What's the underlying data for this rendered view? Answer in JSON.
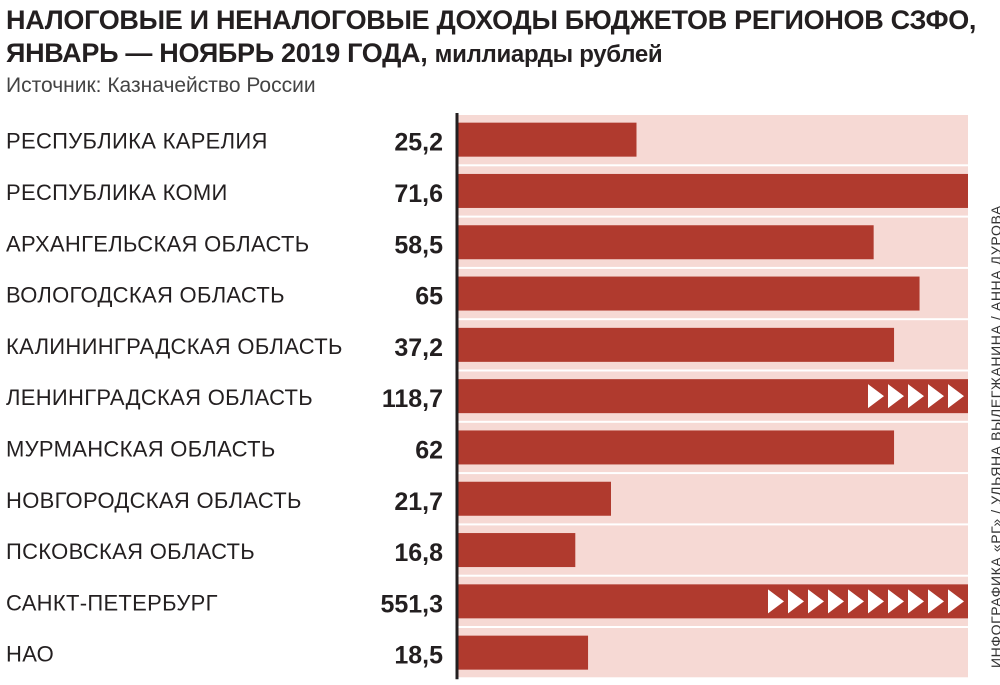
{
  "chart_data": {
    "type": "bar",
    "orientation": "horizontal",
    "title": "НАЛОГОВЫЕ И НЕНАЛОГОВЫЕ ДОХОДЫ БЮДЖЕТОВ РЕГИОНОВ СЗФО, ЯНВАРЬ — НОЯБРЬ 2019 ГОДА,",
    "unit_label": "миллиарды рублей",
    "source": "Источник: Казначейство России",
    "credit": "ИНФОГРАФИКА «РГ» / УЛЬЯНА ВЫЛЕГЖАНИНА / АННА ДУРОВА",
    "categories": [
      "РЕСПУБЛИКА КАРЕЛИЯ",
      "РЕСПУБЛИКА КОМИ",
      "АРХАНГЕЛЬСКАЯ ОБЛАСТЬ",
      "ВОЛОГОДСКАЯ ОБЛАСТЬ",
      "КАЛИНИНГРАДСКАЯ ОБЛАСТЬ",
      "ЛЕНИНГРАДСКАЯ ОБЛАСТЬ",
      "МУРМАНСКАЯ ОБЛАСТЬ",
      "НОВГОРОДСКАЯ ОБЛАСТЬ",
      "ПСКОВСКАЯ ОБЛАСТЬ",
      "САНКТ-ПЕТЕРБУРГ",
      "НАО"
    ],
    "value_labels": [
      "25,2",
      "71,6",
      "58,5",
      "65",
      "37,2",
      "118,7",
      "62",
      "21,7",
      "16,8",
      "551,3",
      "18,5"
    ],
    "values": [
      25.2,
      71.6,
      58.5,
      65,
      37.2,
      118.7,
      62,
      21.7,
      16.8,
      551.3,
      18.5
    ],
    "bar_fill_fraction": [
      0.35,
      1.0,
      0.815,
      0.905,
      0.855,
      1.0,
      0.855,
      0.3,
      0.23,
      1.0,
      0.255
    ],
    "truncated_bars": [
      false,
      false,
      false,
      false,
      false,
      true,
      false,
      false,
      false,
      true,
      false
    ],
    "colors": {
      "bar": "#b03a2e",
      "track": "#f6d9d4",
      "arrow": "#ffffff",
      "axis": "#231f20"
    }
  }
}
